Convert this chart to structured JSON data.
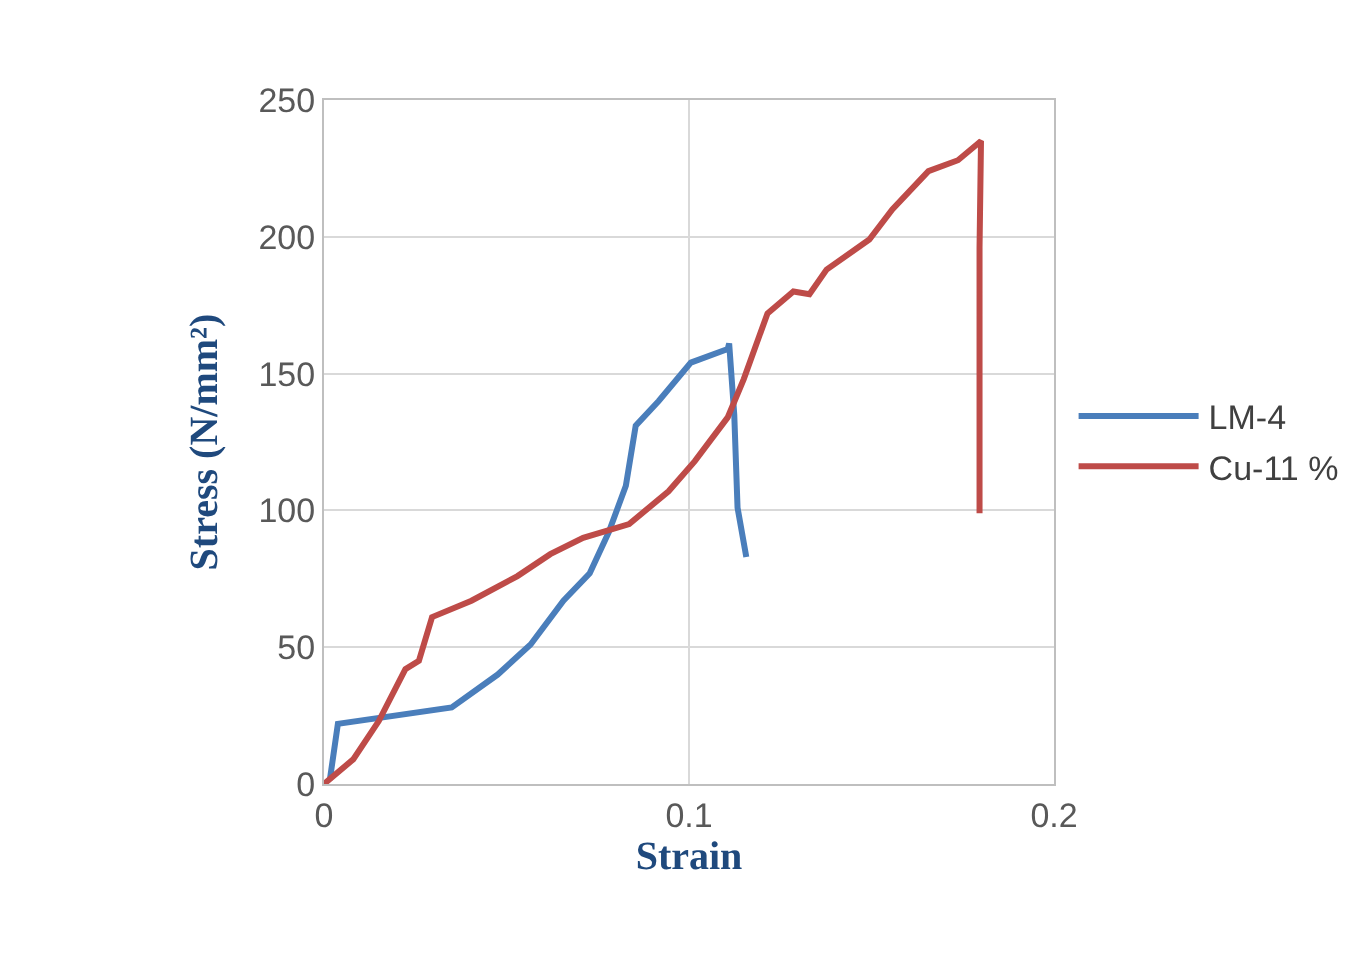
{
  "chart_data": {
    "type": "line",
    "xlabel": "Strain",
    "ylabel": "Stress (N/mm²)",
    "xlim": [
      0,
      0.2
    ],
    "xticks": [
      0,
      0.1,
      0.2
    ],
    "ylim": [
      0,
      250
    ],
    "yticks": [
      0,
      50,
      100,
      150,
      200,
      250
    ],
    "grid": true,
    "legend": "right",
    "marker": "none",
    "line_style": "solid",
    "series": [
      {
        "name": "LM-4",
        "color": "#4a7ebb",
        "x": [
          0.0016,
          0.0038,
          0.035,
          0.0476,
          0.0566,
          0.0656,
          0.0728,
          0.078,
          0.0827,
          0.0854,
          0.0917,
          0.1005,
          0.1106,
          0.111,
          0.1124,
          0.1133,
          0.1157
        ],
        "values": [
          1.5,
          22,
          28,
          40,
          51,
          67,
          77,
          92,
          109,
          131,
          140,
          154,
          159,
          161,
          135,
          101,
          83
        ]
      },
      {
        "name": "Cu-11 %",
        "color": "#be4b48",
        "x": [
          0,
          0.008,
          0.015,
          0.0223,
          0.026,
          0.0296,
          0.0404,
          0.053,
          0.062,
          0.071,
          0.0836,
          0.0944,
          0.1016,
          0.1106,
          0.115,
          0.1215,
          0.1286,
          0.133,
          0.1377,
          0.1494,
          0.1557,
          0.1656,
          0.1737,
          0.18,
          0.1796,
          0.1796
        ],
        "values": [
          0,
          9,
          23,
          42,
          45,
          61,
          67,
          76,
          84,
          90,
          95,
          107,
          118,
          134,
          148,
          172,
          180,
          179,
          188,
          199,
          210,
          224,
          228,
          235,
          196,
          99
        ]
      }
    ]
  }
}
